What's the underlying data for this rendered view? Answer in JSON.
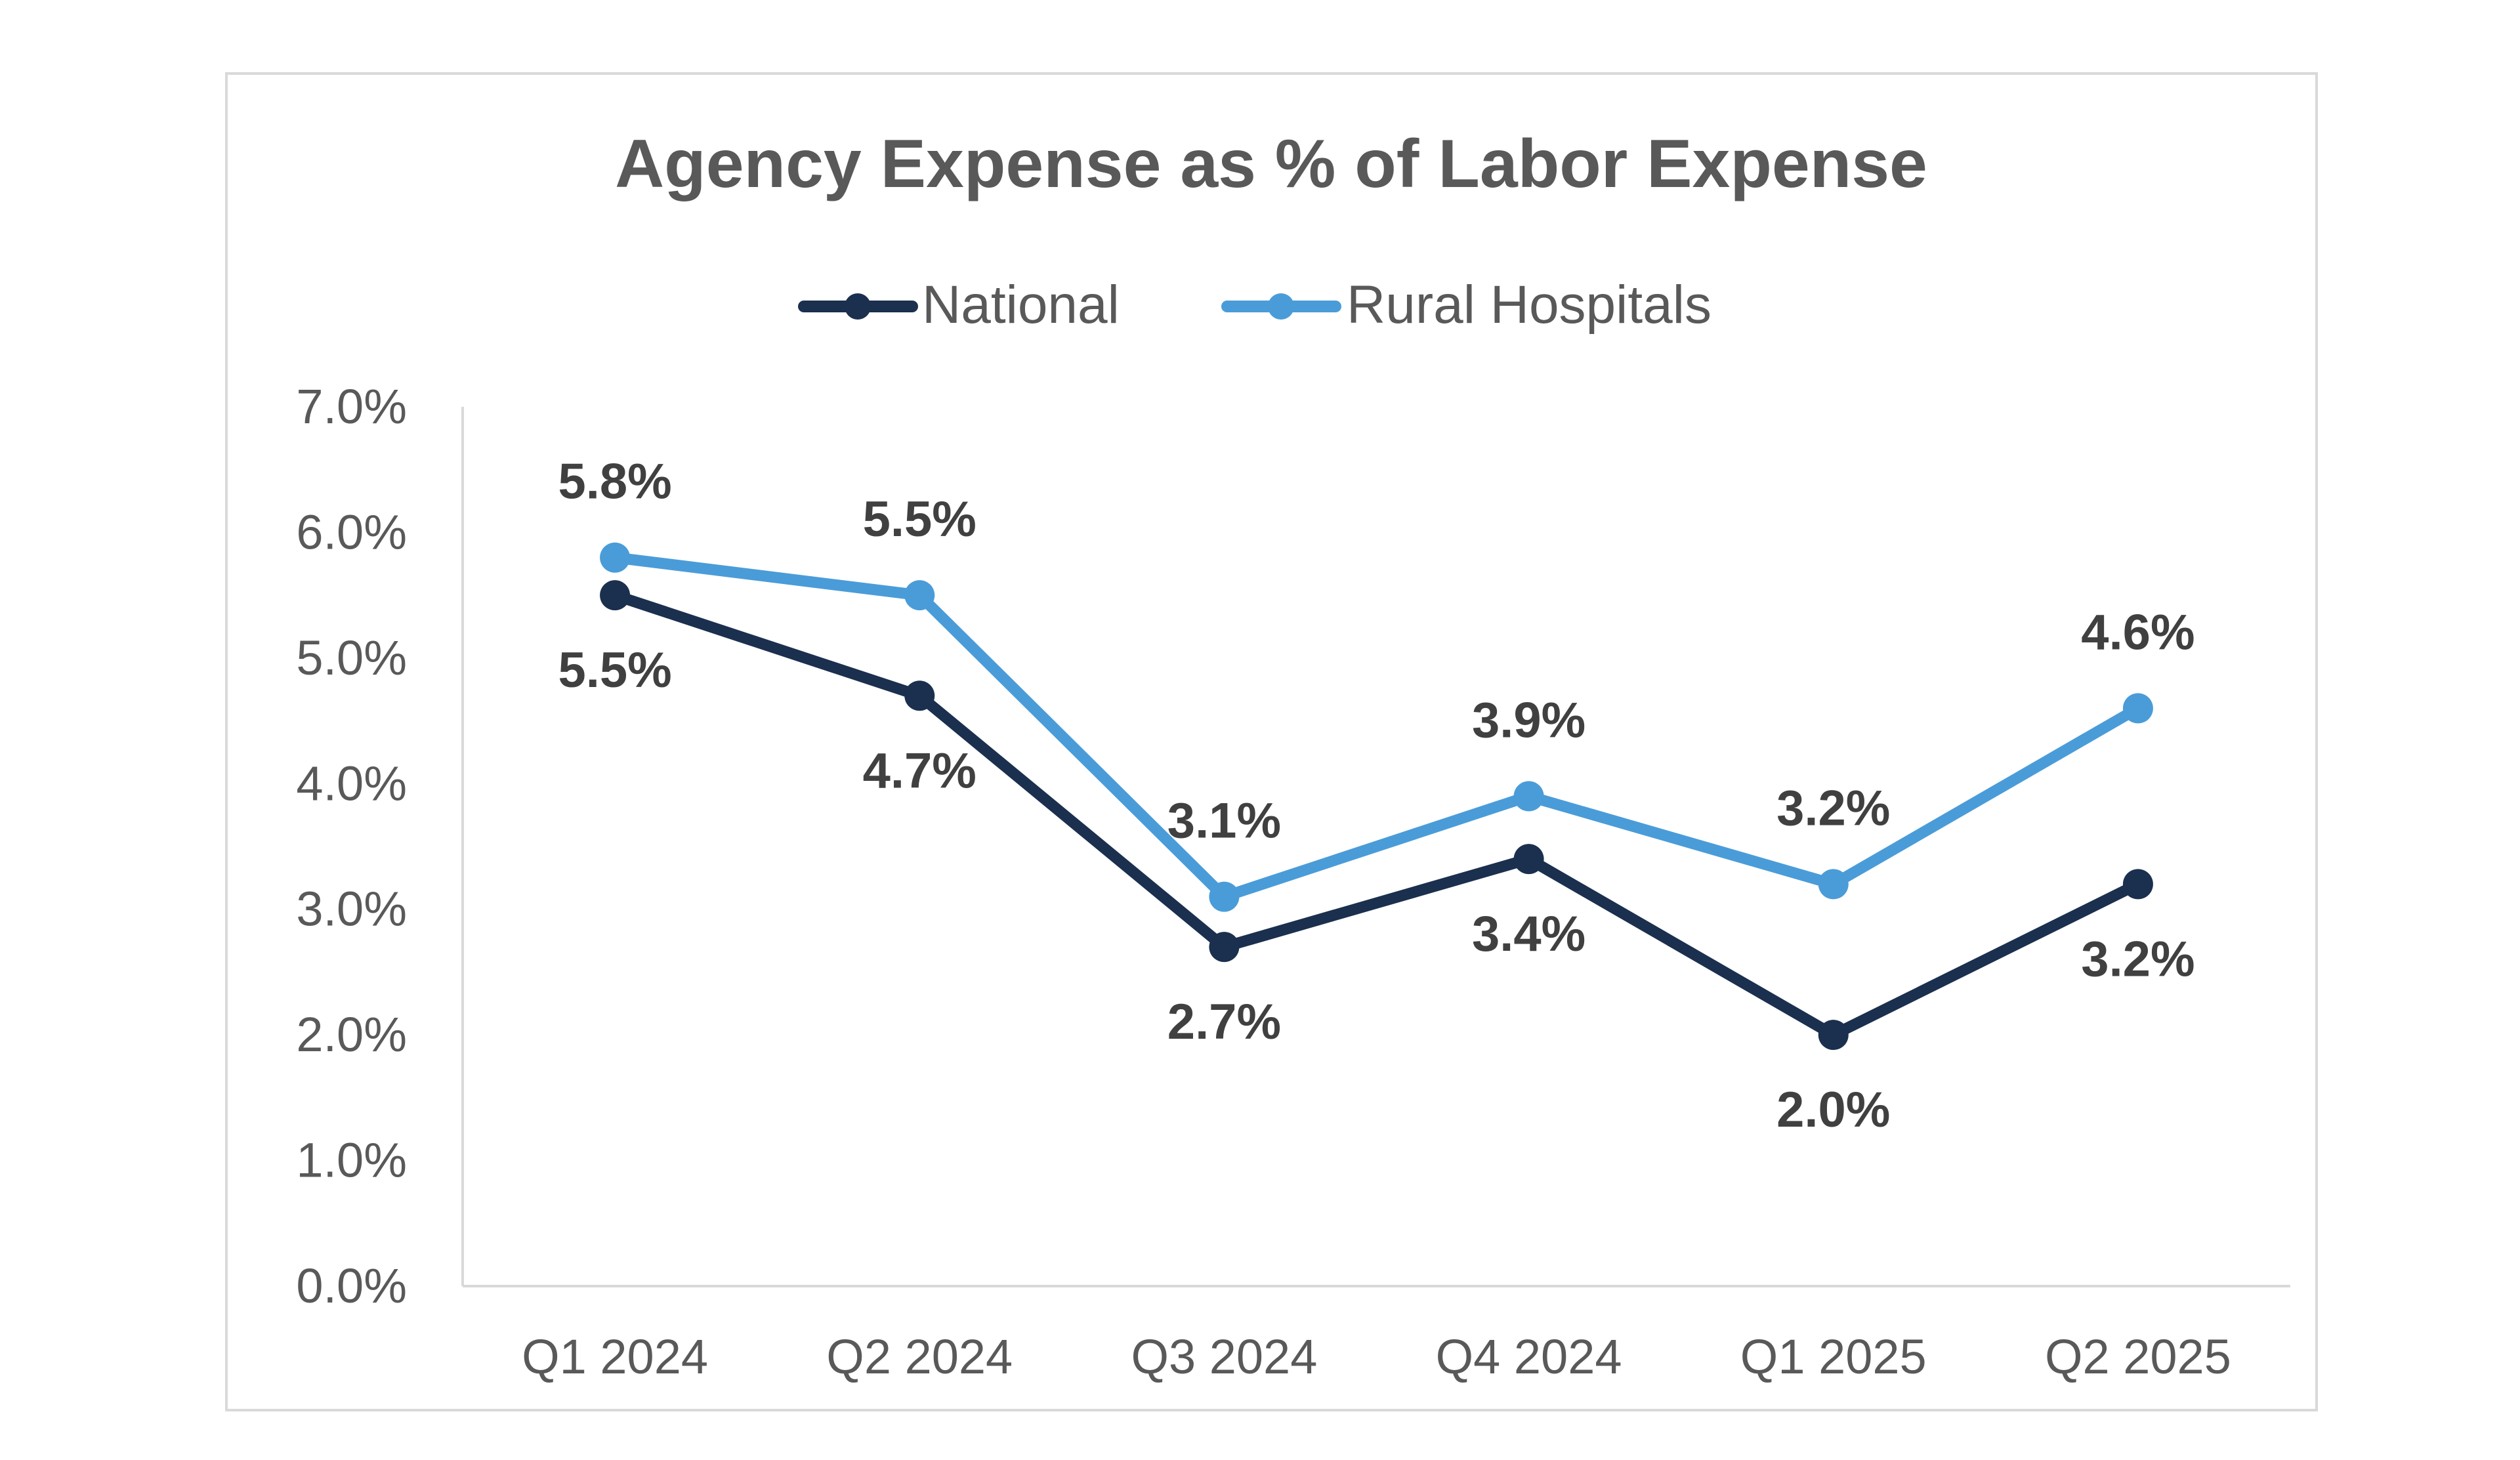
{
  "chart_data": {
    "type": "line",
    "title": "Agency Expense as % of Labor Expense",
    "categories": [
      "Q1 2024",
      "Q2 2024",
      "Q3 2024",
      "Q4 2024",
      "Q1 2025",
      "Q2 2025"
    ],
    "series": [
      {
        "name": "National",
        "values": [
          5.5,
          4.7,
          2.7,
          3.4,
          2.0,
          3.2
        ],
        "labels": [
          "5.5%",
          "4.7%",
          "2.7%",
          "3.4%",
          "2.0%",
          "3.2%"
        ],
        "color": "#1b2f4e",
        "label_position": "below"
      },
      {
        "name": "Rural Hospitals",
        "values": [
          5.8,
          5.5,
          3.1,
          3.9,
          3.2,
          4.6
        ],
        "labels": [
          "5.8%",
          "5.5%",
          "3.1%",
          "3.9%",
          "3.2%",
          "4.6%"
        ],
        "color": "#4a9cd8",
        "label_position": "above"
      }
    ],
    "ylim": [
      0,
      7
    ],
    "yticks": [
      0,
      1,
      2,
      3,
      4,
      5,
      6,
      7
    ],
    "ytick_labels": [
      "0.0%",
      "1.0%",
      "2.0%",
      "3.0%",
      "4.0%",
      "5.0%",
      "6.0%",
      "7.0%"
    ],
    "xlabel": "",
    "ylabel": "",
    "grid": false,
    "legend_position": "top-center"
  },
  "colors": {
    "title": "#595959",
    "axis_text": "#595959",
    "data_label": "#404040",
    "axis_line": "#d9d9d9",
    "frame": "#d9d9d9"
  }
}
